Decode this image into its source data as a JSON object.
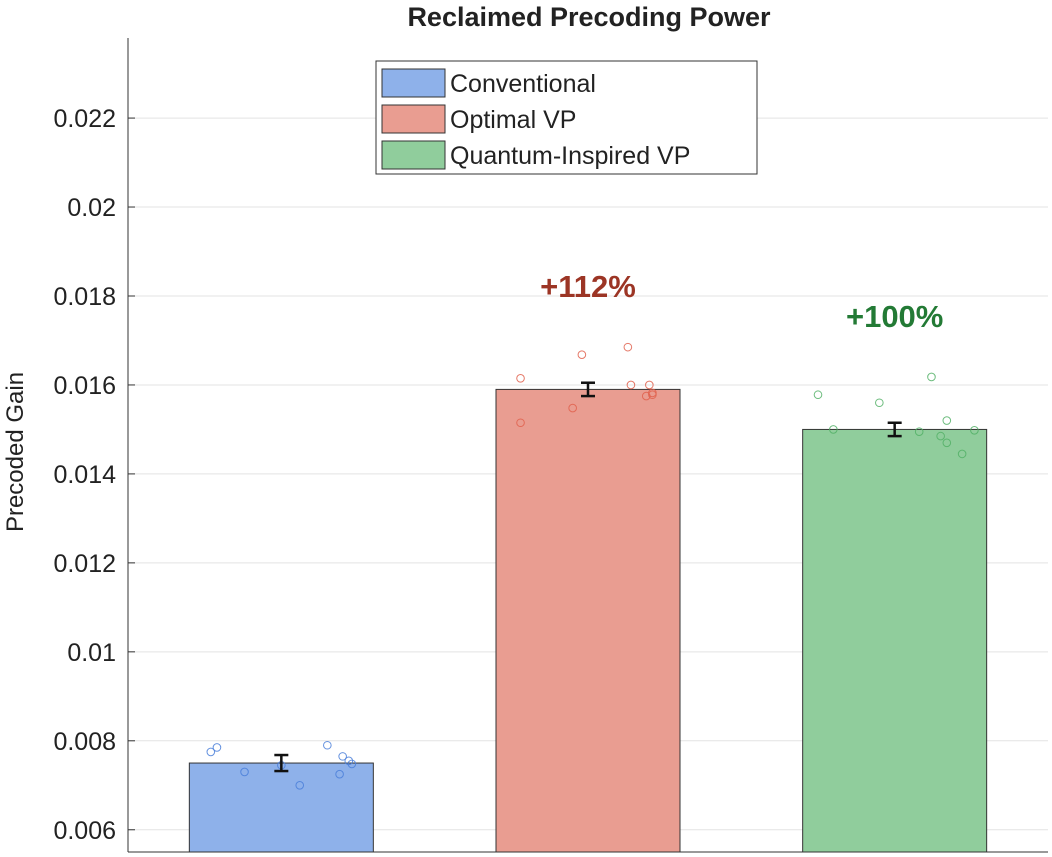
{
  "chart_data": {
    "type": "bar",
    "title": "Reclaimed Precoding Power",
    "xlabel": "",
    "ylabel": "Precoded Gain",
    "ylim": [
      0.0055,
      0.0238
    ],
    "yticks": [
      0.006,
      0.008,
      0.01,
      0.012,
      0.014,
      0.016,
      0.018,
      0.02,
      0.022
    ],
    "ytick_labels": [
      "0.006",
      "0.008",
      "0.01",
      "0.012",
      "0.014",
      "0.016",
      "0.018",
      "0.02",
      "0.022"
    ],
    "grid": true,
    "legend_position": "top-center",
    "series": [
      {
        "name": "Conventional",
        "value": 0.0075,
        "error": 0.00018,
        "color": "#8eb1ea",
        "point_color": "#4a7fd9",
        "points": [
          [
            -0.23,
            0.00775
          ],
          [
            -0.21,
            0.00785
          ],
          [
            -0.12,
            0.0073
          ],
          [
            0.0,
            0.00745
          ],
          [
            0.06,
            0.007
          ],
          [
            0.15,
            0.0079
          ],
          [
            0.19,
            0.00725
          ],
          [
            0.2,
            0.00765
          ],
          [
            0.22,
            0.00755
          ],
          [
            0.23,
            0.00748
          ]
        ],
        "annotation": ""
      },
      {
        "name": "Optimal VP",
        "value": 0.0159,
        "error": 0.00015,
        "color": "#e99d91",
        "point_color": "#e0604c",
        "points": [
          [
            -0.22,
            0.01515
          ],
          [
            -0.22,
            0.01615
          ],
          [
            -0.05,
            0.01548
          ],
          [
            -0.02,
            0.01668
          ],
          [
            0.13,
            0.01685
          ],
          [
            0.14,
            0.016
          ],
          [
            0.19,
            0.01575
          ],
          [
            0.2,
            0.016
          ],
          [
            0.21,
            0.01578
          ],
          [
            0.21,
            0.01582
          ]
        ],
        "annotation": "+112%",
        "annotation_color": "#9c3525"
      },
      {
        "name": "Quantum-Inspired VP",
        "value": 0.015,
        "error": 0.00015,
        "color": "#90cd9c",
        "point_color": "#52b066",
        "points": [
          [
            -0.25,
            0.01578
          ],
          [
            -0.2,
            0.015
          ],
          [
            -0.05,
            0.0156
          ],
          [
            0.08,
            0.01495
          ],
          [
            0.12,
            0.01618
          ],
          [
            0.15,
            0.01485
          ],
          [
            0.17,
            0.0147
          ],
          [
            0.17,
            0.0152
          ],
          [
            0.22,
            0.01445
          ],
          [
            0.26,
            0.01498
          ]
        ],
        "annotation": "+100%",
        "annotation_color": "#237a35"
      }
    ]
  }
}
